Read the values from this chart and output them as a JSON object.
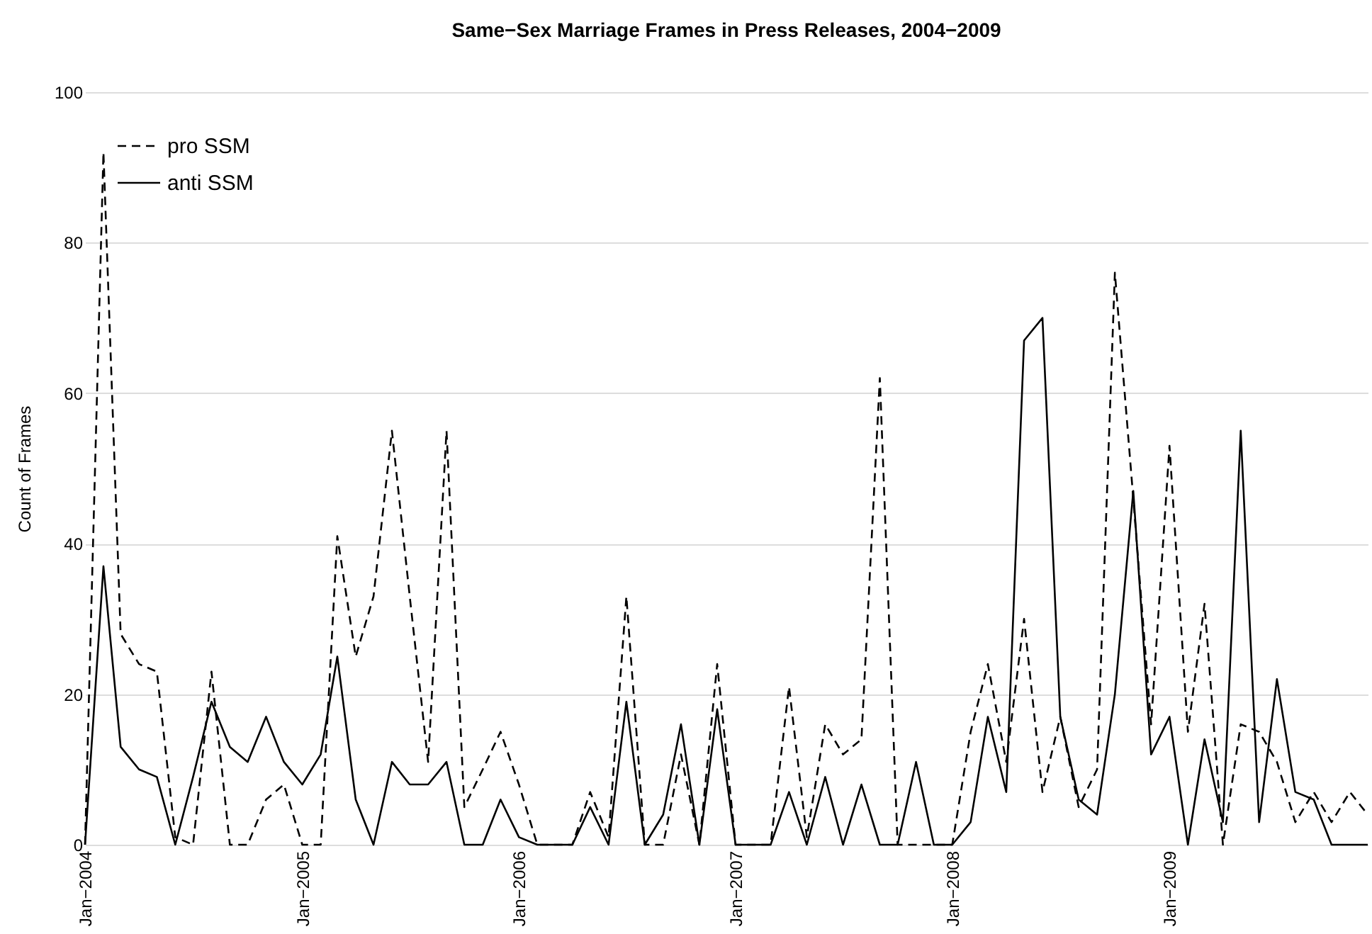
{
  "chart_data": {
    "type": "line",
    "title": "Same−Sex Marriage Frames in Press Releases, 2004−2009",
    "ylabel": "Count of Frames",
    "x": [
      "2004-01",
      "2004-02",
      "2004-03",
      "2004-04",
      "2004-05",
      "2004-06",
      "2004-07",
      "2004-08",
      "2004-09",
      "2004-10",
      "2004-11",
      "2004-12",
      "2005-01",
      "2005-02",
      "2005-03",
      "2005-04",
      "2005-05",
      "2005-06",
      "2005-07",
      "2005-08",
      "2005-09",
      "2005-10",
      "2005-11",
      "2005-12",
      "2006-01",
      "2006-02",
      "2006-03",
      "2006-04",
      "2006-05",
      "2006-06",
      "2006-07",
      "2006-08",
      "2006-09",
      "2006-10",
      "2006-11",
      "2006-12",
      "2007-01",
      "2007-02",
      "2007-03",
      "2007-04",
      "2007-05",
      "2007-06",
      "2007-07",
      "2007-08",
      "2007-09",
      "2007-10",
      "2007-11",
      "2007-12",
      "2008-01",
      "2008-02",
      "2008-03",
      "2008-04",
      "2008-05",
      "2008-06",
      "2008-07",
      "2008-08",
      "2008-09",
      "2008-10",
      "2008-11",
      "2008-12",
      "2009-01",
      "2009-02",
      "2009-03",
      "2009-04",
      "2009-05",
      "2009-06",
      "2009-07",
      "2009-08",
      "2009-09",
      "2009-10",
      "2009-11",
      "2009-12"
    ],
    "series": [
      {
        "name": "pro SSM",
        "color": "#000000",
        "line_style": "dashed",
        "values": [
          0,
          92,
          28,
          24,
          23,
          1,
          0,
          23,
          0,
          0,
          6,
          8,
          0,
          0,
          41,
          25,
          33,
          55,
          33,
          11,
          55,
          5,
          10,
          15,
          8,
          0,
          0,
          0,
          7,
          1,
          33,
          0,
          0,
          12,
          0,
          24,
          0,
          0,
          0,
          21,
          1,
          16,
          12,
          14,
          62,
          0,
          0,
          0,
          0,
          15,
          24,
          11,
          30,
          7,
          17,
          5,
          10,
          76,
          46,
          16,
          53,
          15,
          32,
          0,
          16,
          15,
          11,
          3,
          7,
          3,
          7,
          4
        ]
      },
      {
        "name": "anti SSM",
        "color": "#000000",
        "line_style": "solid",
        "values": [
          0,
          37,
          13,
          10,
          9,
          0,
          9,
          19,
          13,
          11,
          17,
          11,
          8,
          12,
          25,
          6,
          0,
          11,
          8,
          8,
          11,
          0,
          0,
          6,
          1,
          0,
          0,
          0,
          5,
          0,
          19,
          0,
          4,
          16,
          0,
          18,
          0,
          0,
          0,
          7,
          0,
          9,
          0,
          8,
          0,
          0,
          11,
          0,
          0,
          3,
          17,
          7,
          67,
          70,
          17,
          6,
          4,
          20,
          47,
          12,
          17,
          0,
          14,
          3,
          55,
          3,
          22,
          7,
          6,
          0,
          0,
          0
        ]
      }
    ],
    "xlim": [
      "2004-01",
      "2009-12"
    ],
    "xticks": [
      {
        "value": "2004-01",
        "label": "Jan−2004"
      },
      {
        "value": "2005-01",
        "label": "Jan−2005"
      },
      {
        "value": "2006-01",
        "label": "Jan−2006"
      },
      {
        "value": "2007-01",
        "label": "Jan−2007"
      },
      {
        "value": "2008-01",
        "label": "Jan−2008"
      },
      {
        "value": "2009-01",
        "label": "Jan−2009"
      }
    ],
    "ylim": [
      0,
      100
    ],
    "yticks": [
      0,
      20,
      40,
      60,
      80,
      100
    ],
    "grid": "y",
    "legend": "top left",
    "marker": "none"
  }
}
